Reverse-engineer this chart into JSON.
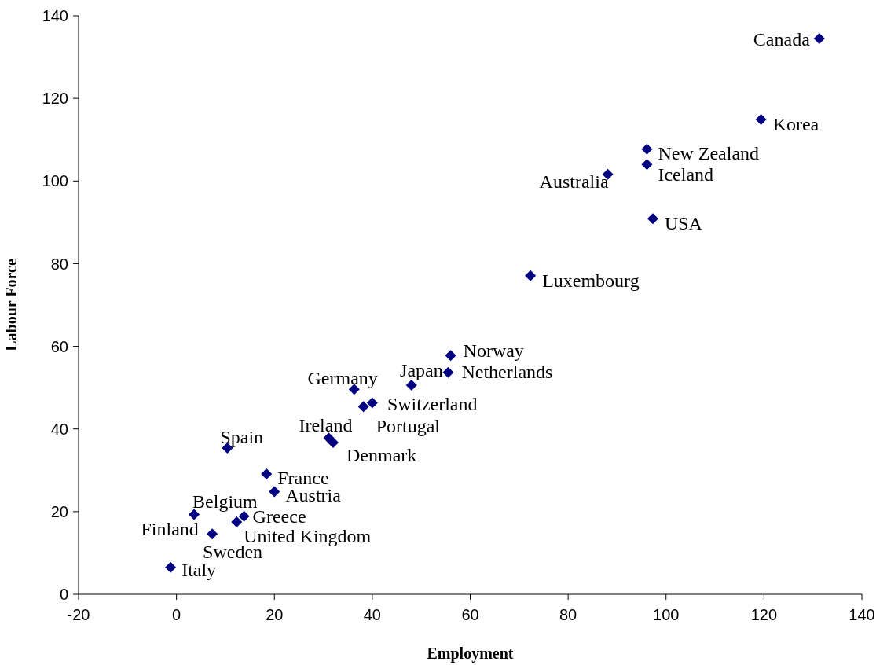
{
  "chart_data": {
    "type": "scatter",
    "xlabel": "Employment",
    "ylabel": "Labour Force",
    "x": [
      -1.2,
      3.6,
      7.1,
      7.3,
      12.3,
      13.8,
      20.0,
      18.4,
      10.4,
      31.1,
      32.0,
      36.3,
      38.2,
      40.0,
      48.0,
      55.5,
      56.0,
      72.3,
      88.1,
      96.1,
      96.1,
      97.3,
      119.4,
      131.3
    ],
    "values": [
      6.5,
      19.3,
      null,
      14.6,
      17.5,
      18.9,
      24.8,
      29.1,
      35.4,
      37.8,
      36.7,
      49.6,
      45.4,
      46.3,
      50.6,
      53.7,
      57.8,
      77.1,
      101.6,
      104.0,
      107.7,
      90.9,
      114.9,
      134.5
    ],
    "color": "#000080",
    "marker": "diamond",
    "grid": false,
    "legend": false,
    "xlim": [
      -20,
      140
    ],
    "xticks": [
      -20,
      0,
      20,
      40,
      60,
      80,
      100,
      120,
      140
    ],
    "ylim": [
      0,
      140
    ],
    "yticks": [
      0,
      20,
      40,
      60,
      80,
      100,
      120,
      140
    ],
    "annotations": [
      {
        "text": "Italy",
        "x": -1.2,
        "y": 6.5
      },
      {
        "text": "Belgium",
        "x": 3.6,
        "y": 19.3
      },
      {
        "text": "Finland",
        "x": 7.1,
        "y": 14.9
      },
      {
        "text": "Sweden",
        "x": 7.3,
        "y": 14.6
      },
      {
        "text": "United Kingdom",
        "x": 12.3,
        "y": 17.5
      },
      {
        "text": "Greece",
        "x": 13.8,
        "y": 18.9
      },
      {
        "text": "Austria",
        "x": 20.0,
        "y": 24.8
      },
      {
        "text": "France",
        "x": 18.4,
        "y": 29.1
      },
      {
        "text": "Spain",
        "x": 10.4,
        "y": 35.4
      },
      {
        "text": "Ireland",
        "x": 31.1,
        "y": 37.8
      },
      {
        "text": "Denmark",
        "x": 32.0,
        "y": 36.7
      },
      {
        "text": "Germany",
        "x": 36.3,
        "y": 49.6
      },
      {
        "text": "Portugal",
        "x": 38.2,
        "y": 45.4
      },
      {
        "text": "Switzerland",
        "x": 40.0,
        "y": 46.3
      },
      {
        "text": "Japan",
        "x": 48.0,
        "y": 50.6
      },
      {
        "text": "Netherlands",
        "x": 55.5,
        "y": 53.7
      },
      {
        "text": "Norway",
        "x": 56.0,
        "y": 57.8
      },
      {
        "text": "Luxembourg",
        "x": 72.3,
        "y": 77.1
      },
      {
        "text": "Australia",
        "x": 88.1,
        "y": 101.6
      },
      {
        "text": "Iceland",
        "x": 96.1,
        "y": 104.0
      },
      {
        "text": "New Zealand",
        "x": 96.1,
        "y": 107.7
      },
      {
        "text": "USA",
        "x": 97.3,
        "y": 90.9
      },
      {
        "text": "Korea",
        "x": 119.4,
        "y": 114.9
      },
      {
        "text": "Canada",
        "x": 131.3,
        "y": 134.5
      }
    ]
  }
}
